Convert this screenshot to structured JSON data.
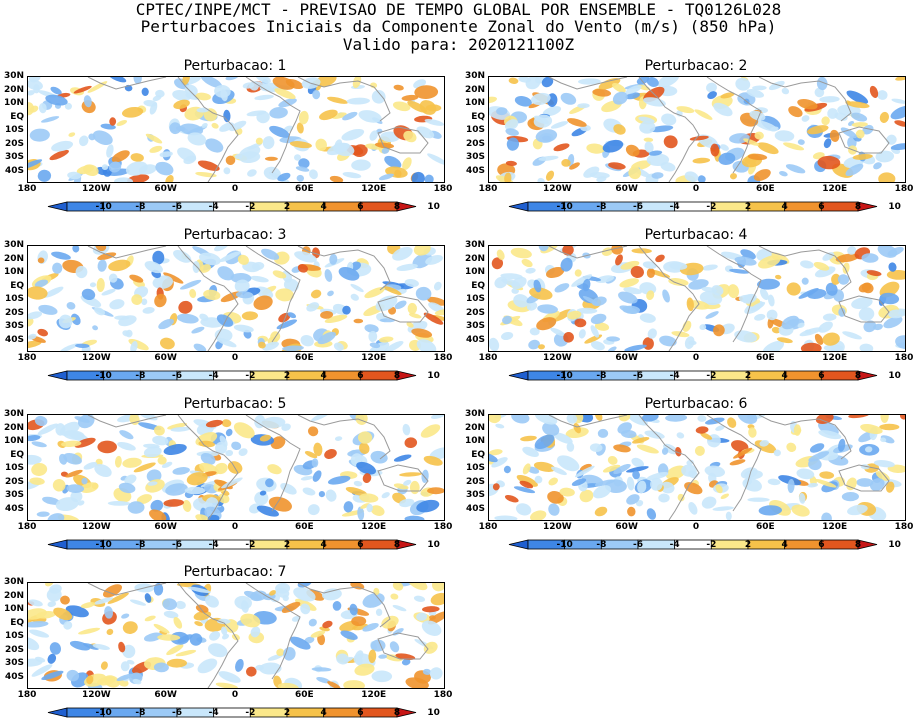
{
  "header": {
    "line1": "CPTEC/INPE/MCT - PREVISAO DE TEMPO GLOBAL POR ENSEMBLE - TQ0126L028",
    "line2": "Perturbacoes Iniciais da Componente Zonal do Vento (m/s) (850 hPa)",
    "line3": "Valido para: 2020121100Z"
  },
  "panels": [
    {
      "title": "Perturbacao: 1"
    },
    {
      "title": "Perturbacao: 2"
    },
    {
      "title": "Perturbacao: 3"
    },
    {
      "title": "Perturbacao: 4"
    },
    {
      "title": "Perturbacao: 5"
    },
    {
      "title": "Perturbacao: 6"
    },
    {
      "title": "Perturbacao: 7"
    }
  ],
  "lat_labels": [
    "30N",
    "20N",
    "10N",
    "EQ",
    "10S",
    "20S",
    "30S",
    "40S"
  ],
  "lon_labels": [
    "180",
    "120W",
    "60W",
    "0",
    "60E",
    "120E",
    "180"
  ],
  "colorbar": {
    "labels": [
      "-10",
      "-8",
      "-6",
      "-4",
      "-2",
      "2",
      "4",
      "6",
      "8",
      "10"
    ],
    "colors": [
      "#1f5fd0",
      "#3e86e6",
      "#6aa8f0",
      "#9ccaf6",
      "#c9e7fb",
      "#ffffff",
      "#fbe88a",
      "#f6c24a",
      "#f0932e",
      "#e2561e",
      "#c71616"
    ]
  }
}
